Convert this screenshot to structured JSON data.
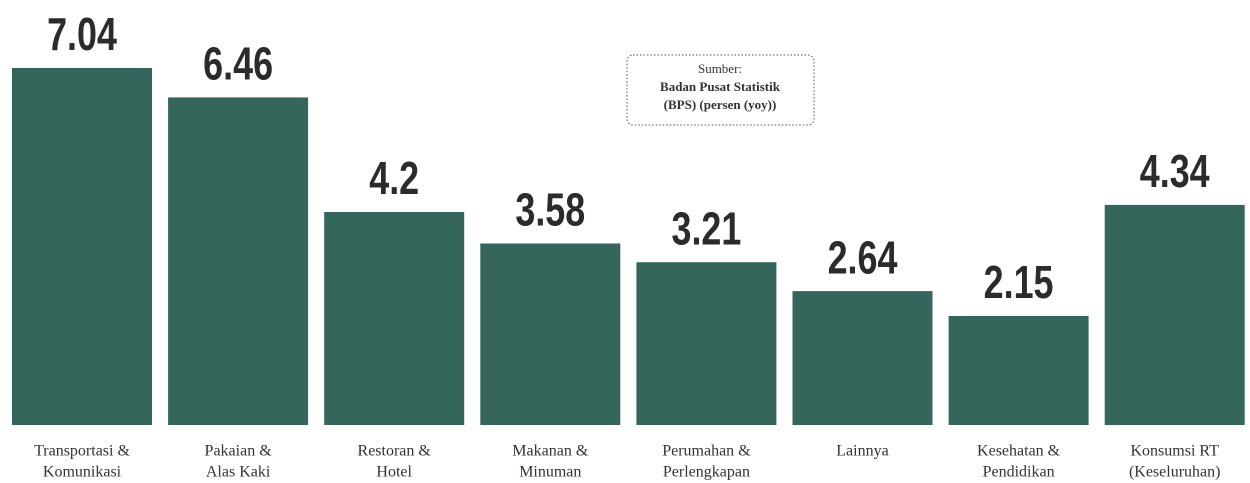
{
  "chart_data": {
    "type": "bar",
    "categories": [
      [
        "Transportasi &",
        "Komunikasi"
      ],
      [
        "Pakaian &",
        "Alas Kaki"
      ],
      [
        "Restoran &",
        "Hotel"
      ],
      [
        "Makanan &",
        "Minuman"
      ],
      [
        "Perumahan &",
        "Perlengkapan"
      ],
      [
        "Lainnya"
      ],
      [
        "Kesehatan &",
        "Pendidikan"
      ],
      [
        "Konsumsi RT",
        "(Keseluruhan)"
      ]
    ],
    "values": [
      7.04,
      6.46,
      4.2,
      3.58,
      3.21,
      2.64,
      2.15,
      4.34
    ],
    "color": "#35665b",
    "annotation": {
      "label": "Sumber:",
      "lines": [
        "Badan Pusat Statistik",
        "(BPS) (persen (yoy))"
      ]
    }
  }
}
